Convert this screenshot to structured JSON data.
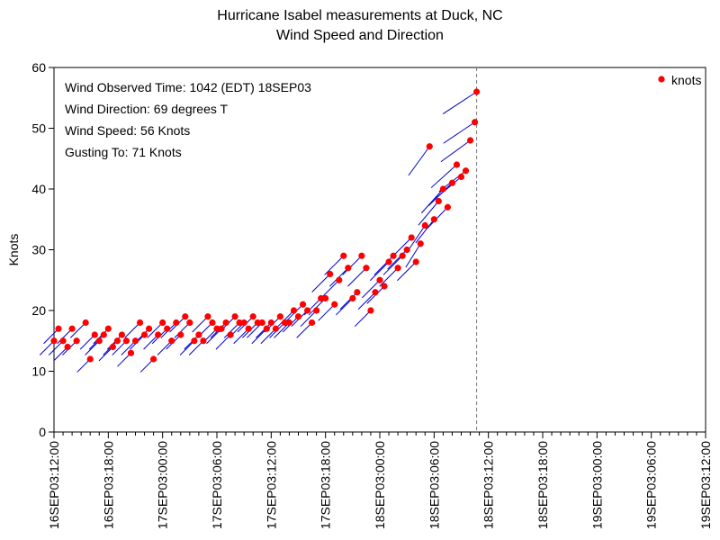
{
  "chart_data": {
    "type": "scatter",
    "title": "Hurricane Isabel measurements at Duck, NC",
    "subtitle": "Wind Speed and Direction",
    "ylabel": "Knots",
    "xlabel": "",
    "ylim": [
      0,
      60
    ],
    "yticks": [
      0,
      10,
      20,
      30,
      40,
      50,
      60
    ],
    "xlim_hours": [
      0,
      72
    ],
    "xticks": [
      {
        "h": 0,
        "label": "16SEP03:12:00"
      },
      {
        "h": 6,
        "label": "16SEP03:18:00"
      },
      {
        "h": 12,
        "label": "17SEP03:00:00"
      },
      {
        "h": 18,
        "label": "17SEP03:06:00"
      },
      {
        "h": 24,
        "label": "17SEP03:12:00"
      },
      {
        "h": 30,
        "label": "17SEP03:18:00"
      },
      {
        "h": 36,
        "label": "18SEP03:00:00"
      },
      {
        "h": 42,
        "label": "18SEP03:06:00"
      },
      {
        "h": 48,
        "label": "18SEP03:12:00"
      },
      {
        "h": 54,
        "label": "18SEP03:18:00"
      },
      {
        "h": 60,
        "label": "19SEP03:00:00"
      },
      {
        "h": 66,
        "label": "19SEP03:06:00"
      },
      {
        "h": 72,
        "label": "19SEP03:12:00"
      }
    ],
    "reference_line_hours": 46.7,
    "legend": {
      "label": "knots",
      "position": "top-right",
      "marker_color": "#ff0000"
    },
    "marker_color": "#ff0000",
    "vector_color": "#0000cc",
    "annotations": [
      "Wind Observed Time: 1042 (EDT) 18SEP03",
      "Wind Direction: 69 degrees T",
      "Wind Speed: 56 Knots",
      "Gusting To: 71 Knots"
    ],
    "series": [
      {
        "values": [
          [
            0.0,
            15
          ],
          [
            0.5,
            17
          ],
          [
            1.0,
            15
          ],
          [
            1.5,
            14
          ],
          [
            2.0,
            17
          ],
          [
            2.5,
            15
          ],
          [
            3.5,
            18
          ],
          [
            4.0,
            12
          ],
          [
            4.5,
            16
          ],
          [
            5.0,
            15
          ],
          [
            5.5,
            16
          ],
          [
            6.0,
            17
          ],
          [
            6.5,
            14
          ],
          [
            7.0,
            15
          ],
          [
            7.5,
            16
          ],
          [
            8.0,
            15
          ],
          [
            8.5,
            13
          ],
          [
            9.0,
            15
          ],
          [
            9.5,
            18
          ],
          [
            10.0,
            16
          ],
          [
            10.5,
            17
          ],
          [
            11.0,
            12
          ],
          [
            11.5,
            16
          ],
          [
            12.0,
            18
          ],
          [
            12.5,
            17
          ],
          [
            13.0,
            15
          ],
          [
            13.5,
            18
          ],
          [
            14.0,
            16
          ],
          [
            14.5,
            19
          ],
          [
            15.0,
            18
          ],
          [
            15.5,
            15
          ],
          [
            16.0,
            16
          ],
          [
            16.5,
            15
          ],
          [
            17.0,
            19
          ],
          [
            17.5,
            18
          ],
          [
            18.0,
            17
          ],
          [
            18.5,
            17
          ],
          [
            19.0,
            18
          ],
          [
            19.5,
            16
          ],
          [
            20.0,
            19
          ],
          [
            20.5,
            18
          ],
          [
            21.0,
            18
          ],
          [
            21.5,
            17
          ],
          [
            22.0,
            19
          ],
          [
            22.5,
            18
          ],
          [
            23.0,
            18
          ],
          [
            23.5,
            17
          ],
          [
            24.0,
            18
          ],
          [
            24.5,
            17
          ],
          [
            25.0,
            19
          ],
          [
            25.5,
            18
          ],
          [
            26.0,
            18
          ],
          [
            26.5,
            20
          ],
          [
            27.0,
            19
          ],
          [
            27.5,
            21
          ],
          [
            28.0,
            20
          ],
          [
            28.5,
            18
          ],
          [
            29.0,
            20
          ],
          [
            29.5,
            22
          ],
          [
            30.0,
            22
          ],
          [
            30.5,
            26
          ],
          [
            31.0,
            21
          ],
          [
            31.5,
            25
          ],
          [
            32.0,
            29
          ],
          [
            32.5,
            27
          ],
          [
            33.0,
            22
          ],
          [
            33.5,
            23
          ],
          [
            34.0,
            29
          ],
          [
            34.5,
            27
          ],
          [
            35.0,
            20
          ],
          [
            35.5,
            23
          ],
          [
            36.0,
            25
          ],
          [
            36.5,
            24
          ],
          [
            37.0,
            28
          ],
          [
            37.5,
            29
          ],
          [
            38.0,
            27
          ],
          [
            38.5,
            29
          ],
          [
            39.0,
            30
          ],
          [
            39.5,
            32
          ],
          [
            40.0,
            28
          ],
          [
            40.5,
            31
          ],
          [
            41.0,
            34
          ],
          [
            41.5,
            47
          ],
          [
            42.0,
            35
          ],
          [
            42.5,
            38
          ],
          [
            43.0,
            40
          ],
          [
            43.5,
            37
          ],
          [
            44.0,
            41
          ],
          [
            44.5,
            44
          ],
          [
            45.0,
            42
          ],
          [
            45.5,
            43
          ],
          [
            46.0,
            48
          ],
          [
            46.5,
            51
          ],
          [
            46.7,
            56
          ]
        ],
        "direction_deg": 225
      }
    ]
  }
}
